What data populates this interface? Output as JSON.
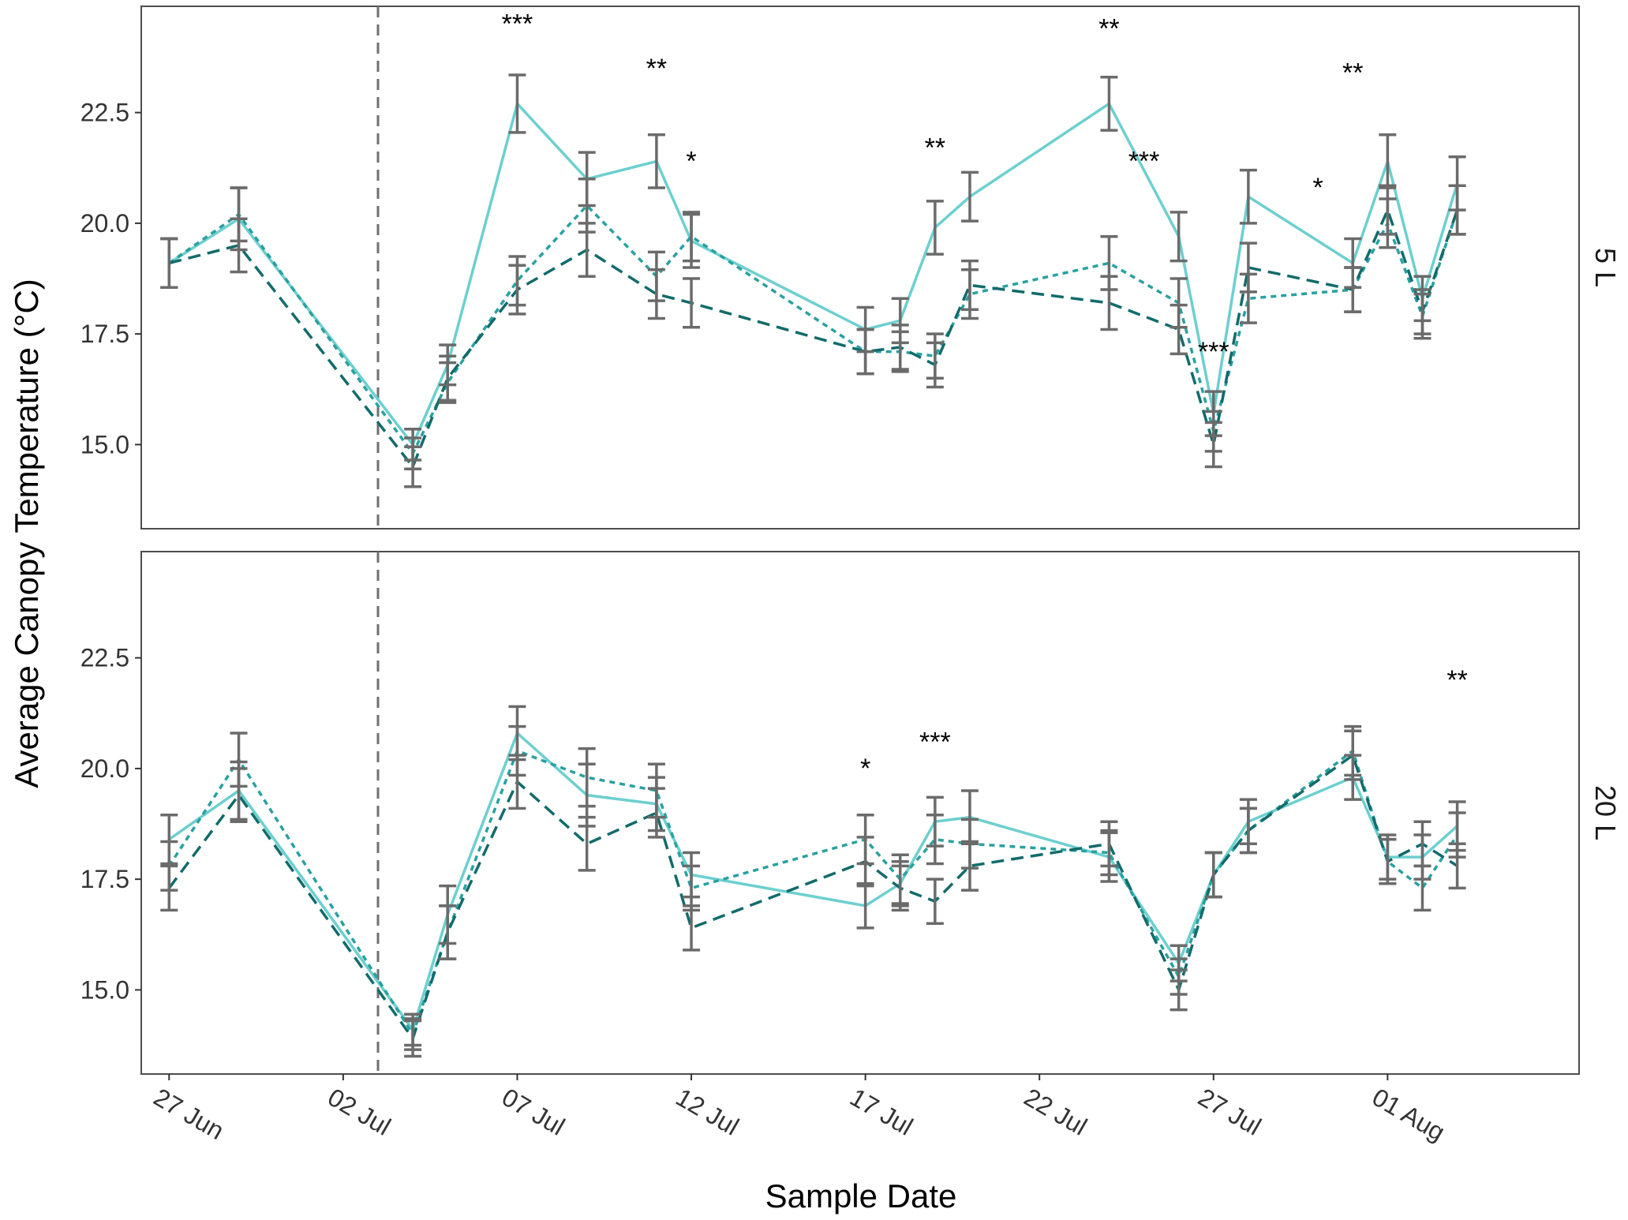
{
  "chart_data": {
    "type": "line",
    "ylabel": "Average Canopy Temperature (°C)",
    "xlabel": "Sample Date",
    "ylim": [
      13.1,
      24.9
    ],
    "yticks": [
      15.0,
      17.5,
      20.0,
      22.5
    ],
    "ytick_labels": [
      "15.0",
      "17.5",
      "20.0",
      "22.5"
    ],
    "xlim": [
      -0.8,
      40.5
    ],
    "xticks": [
      0,
      5,
      10,
      15,
      20,
      25,
      30,
      35
    ],
    "xtick_labels": [
      "27 Jun",
      "02 Jul",
      "07 Jul",
      "12 Jul",
      "17 Jul",
      "22 Jul",
      "27 Jul",
      "01 Aug"
    ],
    "treatment_start_day": 6,
    "colors": {
      "light": "#6dcfcf",
      "medium": "#2aa0a0",
      "dark": "#126b6b",
      "errorbar": "#6b6b6b",
      "vline": "#707070",
      "frame": "#4d4d4d"
    },
    "panels": [
      {
        "strip": "5 L",
        "series": [
          {
            "name": "series-solid",
            "style": "solid",
            "color": "light",
            "x": [
              0,
              2,
              7,
              8,
              10,
              12,
              14,
              15,
              20,
              21,
              22,
              23,
              27,
              29,
              30,
              31,
              34,
              35,
              36,
              37
            ],
            "y": [
              19.1,
              20.1,
              15.0,
              16.8,
              22.7,
              21.0,
              21.4,
              19.6,
              17.6,
              17.8,
              19.9,
              20.6,
              22.7,
              19.7,
              15.7,
              20.6,
              19.1,
              21.4,
              18.3,
              20.9
            ],
            "err": [
              0.55,
              0.7,
              0.35,
              0.45,
              0.65,
              0.6,
              0.6,
              0.6,
              0.5,
              0.5,
              0.6,
              0.55,
              0.6,
              0.55,
              0.5,
              0.6,
              0.55,
              0.6,
              0.5,
              0.6
            ]
          },
          {
            "name": "series-dotted",
            "style": "dotted",
            "color": "medium",
            "x": [
              0,
              2,
              7,
              8,
              10,
              12,
              14,
              15,
              20,
              21,
              22,
              23,
              27,
              29,
              30,
              31,
              34,
              35,
              36,
              37
            ],
            "y": [
              19.1,
              20.2,
              14.8,
              16.4,
              18.7,
              20.4,
              18.8,
              19.7,
              17.1,
              17.1,
              17.0,
              18.4,
              19.1,
              18.2,
              15.3,
              18.3,
              18.5,
              20.0,
              17.9,
              20.3
            ],
            "err": [
              0.55,
              0.6,
              0.35,
              0.45,
              0.55,
              0.6,
              0.55,
              0.55,
              0.5,
              0.45,
              0.5,
              0.55,
              0.6,
              0.55,
              0.45,
              0.55,
              0.5,
              0.55,
              0.5,
              0.55
            ]
          },
          {
            "name": "series-dashed",
            "style": "dashed",
            "color": "dark",
            "x": [
              0,
              2,
              7,
              8,
              10,
              12,
              14,
              15,
              20,
              21,
              22,
              23,
              27,
              29,
              30,
              31,
              34,
              35,
              36,
              37
            ],
            "y": [
              19.1,
              19.5,
              14.5,
              16.5,
              18.5,
              19.4,
              18.4,
              18.2,
              17.1,
              17.2,
              16.8,
              18.6,
              18.2,
              17.6,
              15.0,
              19.0,
              18.5,
              20.3,
              18.0,
              20.3
            ],
            "err": [
              0.55,
              0.6,
              0.45,
              0.5,
              0.55,
              0.6,
              0.55,
              0.55,
              0.5,
              0.5,
              0.5,
              0.55,
              0.6,
              0.55,
              0.5,
              0.55,
              0.5,
              0.55,
              0.5,
              0.55
            ]
          }
        ],
        "significance": [
          {
            "x": 10,
            "label": "***",
            "y": 24.3
          },
          {
            "x": 14,
            "label": "**",
            "y": 23.3
          },
          {
            "x": 15,
            "label": "*",
            "y": 21.2
          },
          {
            "x": 22,
            "label": "**",
            "y": 21.5
          },
          {
            "x": 27,
            "label": "**",
            "y": 24.2
          },
          {
            "x": 28,
            "label": "***",
            "y": 21.2
          },
          {
            "x": 30,
            "label": "***",
            "y": 16.9
          },
          {
            "x": 33,
            "label": "*",
            "y": 20.6
          },
          {
            "x": 34,
            "label": "**",
            "y": 23.2
          }
        ]
      },
      {
        "strip": "20 L",
        "series": [
          {
            "name": "series-solid",
            "style": "solid",
            "color": "light",
            "x": [
              0,
              2,
              7,
              8,
              10,
              12,
              14,
              15,
              20,
              21,
              22,
              23,
              27,
              29,
              30,
              31,
              34,
              35,
              36,
              37
            ],
            "y": [
              18.4,
              19.5,
              14.1,
              16.7,
              20.8,
              19.4,
              19.2,
              17.6,
              16.9,
              17.4,
              18.8,
              18.9,
              18.0,
              15.6,
              17.6,
              18.8,
              19.8,
              18.0,
              18.0,
              18.7
            ],
            "err": [
              0.55,
              0.65,
              0.35,
              0.65,
              0.6,
              0.7,
              0.6,
              0.5,
              0.5,
              0.5,
              0.55,
              0.6,
              0.55,
              0.4,
              0.5,
              0.5,
              0.5,
              0.5,
              0.5,
              0.55
            ]
          },
          {
            "name": "series-dotted",
            "style": "dotted",
            "color": "medium",
            "x": [
              0,
              2,
              7,
              8,
              10,
              12,
              14,
              15,
              20,
              21,
              22,
              23,
              27,
              29,
              30,
              31,
              34,
              35,
              36,
              37
            ],
            "y": [
              17.8,
              20.2,
              14.0,
              16.3,
              20.4,
              19.8,
              19.5,
              17.3,
              18.4,
              17.5,
              18.4,
              18.3,
              18.1,
              15.3,
              17.6,
              18.6,
              20.4,
              17.9,
              17.3,
              18.5
            ],
            "err": [
              0.55,
              0.6,
              0.35,
              0.6,
              0.55,
              0.65,
              0.6,
              0.5,
              0.55,
              0.55,
              0.55,
              0.55,
              0.5,
              0.4,
              0.5,
              0.5,
              0.55,
              0.5,
              0.5,
              0.5
            ]
          },
          {
            "name": "series-dashed",
            "style": "dashed",
            "color": "dark",
            "x": [
              0,
              2,
              7,
              8,
              10,
              12,
              14,
              15,
              20,
              21,
              22,
              23,
              27,
              29,
              30,
              31,
              34,
              35,
              36,
              37
            ],
            "y": [
              17.3,
              19.4,
              13.9,
              16.3,
              19.7,
              18.3,
              19.0,
              16.4,
              17.9,
              17.3,
              17.0,
              17.8,
              18.3,
              15.0,
              17.6,
              18.6,
              20.3,
              17.9,
              18.3,
              17.8
            ],
            "err": [
              0.5,
              0.6,
              0.4,
              0.6,
              0.6,
              0.6,
              0.55,
              0.5,
              0.55,
              0.5,
              0.5,
              0.55,
              0.5,
              0.45,
              0.5,
              0.5,
              0.55,
              0.5,
              0.5,
              0.5
            ]
          }
        ],
        "significance": [
          {
            "x": 20,
            "label": "*",
            "y": 19.8
          },
          {
            "x": 22,
            "label": "***",
            "y": 20.4
          },
          {
            "x": 37,
            "label": "**",
            "y": 21.8
          }
        ]
      }
    ]
  }
}
